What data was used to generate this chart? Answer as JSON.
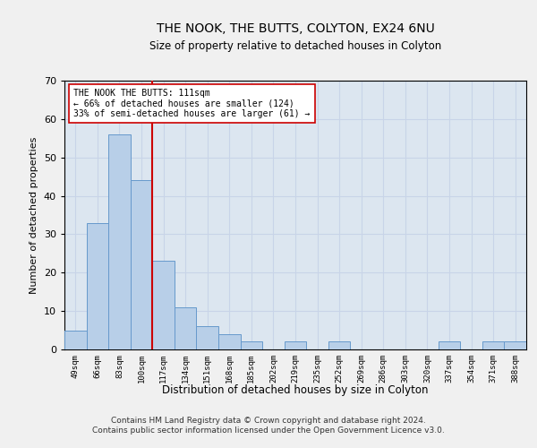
{
  "title": "THE NOOK, THE BUTTS, COLYTON, EX24 6NU",
  "subtitle": "Size of property relative to detached houses in Colyton",
  "xlabel": "Distribution of detached houses by size in Colyton",
  "ylabel": "Number of detached properties",
  "categories": [
    "49sqm",
    "66sqm",
    "83sqm",
    "100sqm",
    "117sqm",
    "134sqm",
    "151sqm",
    "168sqm",
    "185sqm",
    "202sqm",
    "219sqm",
    "235sqm",
    "252sqm",
    "269sqm",
    "286sqm",
    "303sqm",
    "320sqm",
    "337sqm",
    "354sqm",
    "371sqm",
    "388sqm"
  ],
  "values": [
    5,
    33,
    56,
    44,
    23,
    11,
    6,
    4,
    2,
    0,
    2,
    0,
    2,
    0,
    0,
    0,
    0,
    2,
    0,
    2,
    2
  ],
  "bar_color": "#b8cfe8",
  "bar_edge_color": "#6699cc",
  "property_line_color": "#cc0000",
  "annotation_line1": "THE NOOK THE BUTTS: 111sqm",
  "annotation_line2": "← 66% of detached houses are smaller (124)",
  "annotation_line3": "33% of semi-detached houses are larger (61) →",
  "annotation_box_color": "#ffffff",
  "annotation_box_edge": "#cc0000",
  "ylim": [
    0,
    70
  ],
  "yticks": [
    0,
    10,
    20,
    30,
    40,
    50,
    60,
    70
  ],
  "grid_color": "#c8d4e8",
  "background_color": "#dce6f0",
  "fig_background": "#f0f0f0",
  "footer_line1": "Contains HM Land Registry data © Crown copyright and database right 2024.",
  "footer_line2": "Contains public sector information licensed under the Open Government Licence v3.0."
}
